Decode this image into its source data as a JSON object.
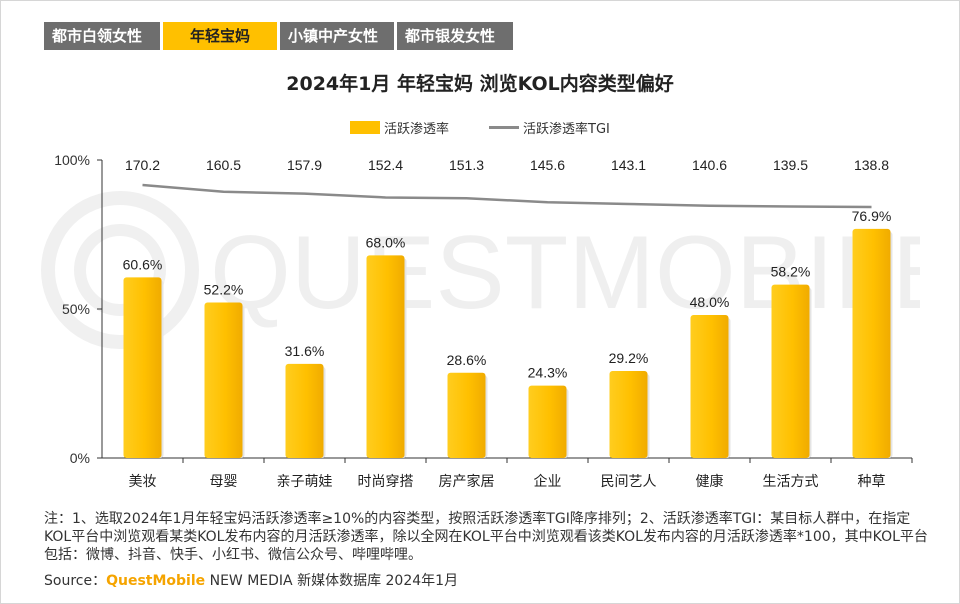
{
  "tabs": [
    "都市白领女性",
    "年轻宝妈",
    "小镇中产女性",
    "都市银发女性"
  ],
  "active_tab": 1,
  "colors": {
    "accent": "#ffc000",
    "bar": "#ffc000",
    "line": "#8a8a8a",
    "tab_inactive": "#6e6e6e"
  },
  "watermark_text": "QUESTMOBILE",
  "notes": "注：1、选取2024年1月年轻宝妈活跃渗透率≥10%的内容类型，按照活跃渗透率TGI降序排列；2、活跃渗透率TGI：某目标人群中，在指定KOL平台中浏览观看某类KOL发布内容的月活跃渗透率，除以全网在KOL平台中浏览观看该类KOL发布内容的月活跃渗透率*100，其中KOL平台包括：微博、抖音、快手、小红书、微信公众号、哔哩哔哩。",
  "source": {
    "label": "Source：",
    "brand": "QuestMobile",
    "rest": " NEW MEDIA 新媒体数据库 2024年1月"
  },
  "chart_data": {
    "type": "bar",
    "title": "2024年1月 年轻宝妈 浏览KOL内容类型偏好",
    "categories": [
      "美妆",
      "母婴",
      "亲子萌娃",
      "时尚穿搭",
      "房产家居",
      "企业",
      "民间艺人",
      "健康",
      "生活方式",
      "种草"
    ],
    "series": [
      {
        "name": "活跃渗透率",
        "type": "bar",
        "values": [
          60.6,
          52.2,
          31.6,
          68.0,
          28.6,
          24.3,
          29.2,
          48.0,
          58.2,
          76.9
        ],
        "labels": [
          "60.6%",
          "52.2%",
          "31.6%",
          "68.0%",
          "28.6%",
          "24.3%",
          "29.2%",
          "48.0%",
          "58.2%",
          "76.9%"
        ]
      },
      {
        "name": "活跃渗透率TGI",
        "type": "line",
        "values": [
          170.2,
          160.5,
          157.9,
          152.4,
          151.3,
          145.6,
          143.1,
          140.6,
          139.5,
          138.8
        ]
      }
    ],
    "yticks": [
      "100%",
      "50%",
      "0%"
    ],
    "ylim": [
      0,
      100
    ],
    "legend_position": "top",
    "grid": false
  }
}
